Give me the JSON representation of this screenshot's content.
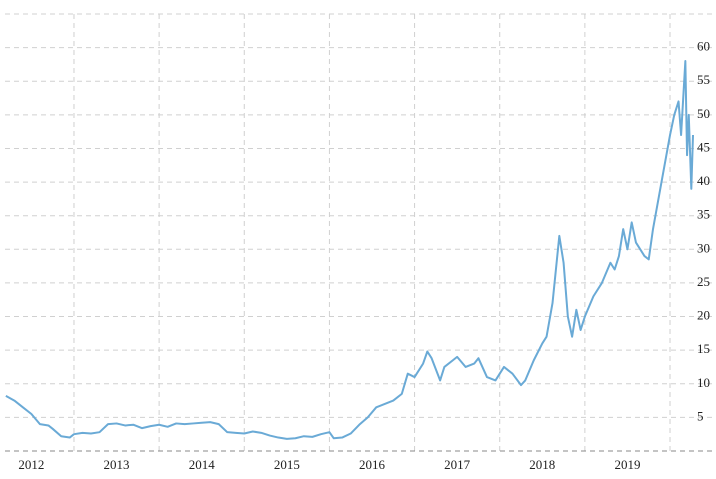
{
  "chart_data": {
    "type": "line",
    "x": [
      2012.2,
      2012.3,
      2012.4,
      2012.5,
      2012.6,
      2012.7,
      2012.75,
      2012.85,
      2012.95,
      2013.0,
      2013.1,
      2013.2,
      2013.3,
      2013.4,
      2013.5,
      2013.6,
      2013.7,
      2013.8,
      2013.9,
      2014.0,
      2014.1,
      2014.2,
      2014.3,
      2014.4,
      2014.5,
      2014.6,
      2014.7,
      2014.8,
      2014.9,
      2015.0,
      2015.1,
      2015.2,
      2015.3,
      2015.4,
      2015.5,
      2015.6,
      2015.7,
      2015.8,
      2015.9,
      2016.0,
      2016.05,
      2016.15,
      2016.25,
      2016.35,
      2016.45,
      2016.55,
      2016.65,
      2016.75,
      2016.85,
      2016.92,
      2017.0,
      2017.1,
      2017.15,
      2017.2,
      2017.3,
      2017.35,
      2017.45,
      2017.5,
      2017.6,
      2017.7,
      2017.75,
      2017.85,
      2017.95,
      2018.05,
      2018.15,
      2018.25,
      2018.3,
      2018.4,
      2018.5,
      2018.55,
      2018.62,
      2018.7,
      2018.75,
      2018.8,
      2018.85,
      2018.9,
      2018.95,
      2019.0,
      2019.1,
      2019.2,
      2019.3,
      2019.35,
      2019.4,
      2019.45,
      2019.5,
      2019.55,
      2019.6,
      2019.7,
      2019.75,
      2019.8,
      2019.9,
      2020.0,
      2020.05,
      2020.1,
      2020.13,
      2020.18,
      2020.2,
      2020.22,
      2020.25,
      2020.27
    ],
    "values": [
      8.2,
      7.5,
      6.5,
      5.5,
      4.0,
      3.8,
      3.3,
      2.2,
      2.0,
      2.5,
      2.7,
      2.6,
      2.8,
      4.0,
      4.1,
      3.8,
      3.9,
      3.4,
      3.7,
      3.9,
      3.6,
      4.1,
      4.0,
      4.1,
      4.2,
      4.3,
      4.0,
      2.8,
      2.7,
      2.6,
      2.9,
      2.7,
      2.3,
      2.0,
      1.8,
      1.9,
      2.2,
      2.1,
      2.5,
      2.8,
      1.9,
      2.0,
      2.6,
      3.9,
      5.0,
      6.5,
      7.0,
      7.5,
      8.5,
      11.5,
      11.0,
      13.0,
      14.8,
      13.8,
      10.5,
      12.5,
      13.5,
      14.0,
      12.5,
      13.0,
      13.8,
      11.0,
      10.5,
      12.5,
      11.5,
      9.8,
      10.5,
      13.5,
      16.0,
      17.0,
      22.0,
      32.0,
      28.0,
      20.0,
      17.0,
      21.0,
      18.0,
      20.0,
      23.0,
      25.0,
      28.0,
      27.0,
      29.0,
      33.0,
      30.0,
      34.0,
      31.0,
      29.0,
      28.5,
      33.0,
      40.0,
      47.0,
      50.0,
      52.0,
      47.0,
      58.0,
      44.0,
      50.0,
      39.0,
      47.0
    ],
    "color": "#6aaad6",
    "xlim": [
      2012.19,
      2020.54
    ],
    "xticks": [
      {
        "value": 2012.5,
        "label": "2012"
      },
      {
        "value": 2013.5,
        "label": "2013"
      },
      {
        "value": 2014.5,
        "label": "2014"
      },
      {
        "value": 2015.5,
        "label": "2015"
      },
      {
        "value": 2016.5,
        "label": "2016"
      },
      {
        "value": 2017.5,
        "label": "2017"
      },
      {
        "value": 2018.5,
        "label": "2018"
      },
      {
        "value": 2019.5,
        "label": "2019"
      }
    ],
    "x_gridlines": [
      2013,
      2014,
      2015,
      2016,
      2017,
      2018,
      2019,
      2020
    ],
    "ylim": [
      0,
      65
    ],
    "yticks": [
      5,
      10,
      15,
      20,
      25,
      30,
      35,
      40,
      45,
      50,
      55,
      60
    ],
    "grid": true
  }
}
